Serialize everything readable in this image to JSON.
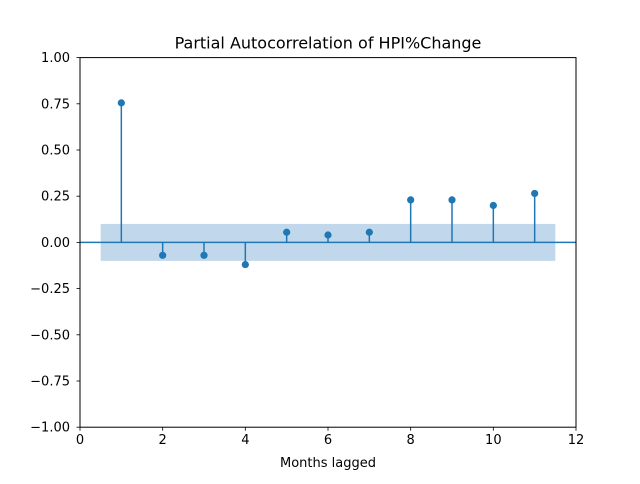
{
  "chart_data": {
    "type": "stem",
    "title": "Partial Autocorrelation of HPI%Change",
    "xlabel": "Months lagged",
    "ylabel": "",
    "xlim": [
      0,
      12
    ],
    "ylim": [
      -1.0,
      1.0
    ],
    "x_ticks": [
      0,
      2,
      4,
      6,
      8,
      10,
      12
    ],
    "x_tick_labels": [
      "0",
      "2",
      "4",
      "6",
      "8",
      "10",
      "12"
    ],
    "y_ticks": [
      -1.0,
      -0.75,
      -0.5,
      -0.25,
      0.0,
      0.25,
      0.5,
      0.75,
      1.0
    ],
    "y_tick_labels": [
      "−1.00",
      "−0.75",
      "−0.50",
      "−0.25",
      "0.00",
      "0.25",
      "0.50",
      "0.75",
      "1.00"
    ],
    "series": [
      {
        "x": [
          1,
          2,
          3,
          4,
          5,
          6,
          7,
          8,
          9,
          10,
          11
        ],
        "values": [
          0.755,
          -0.07,
          -0.07,
          -0.12,
          0.055,
          0.04,
          0.055,
          0.23,
          0.23,
          0.2,
          0.265
        ]
      }
    ],
    "confidence_band": {
      "x_range": [
        0.5,
        11.5
      ],
      "lower": -0.1,
      "upper": 0.1
    },
    "grid": false,
    "colors": {
      "stem": "#1f77b4",
      "band": "#a6c8e4",
      "zero_line": "#1f77b4",
      "axes": "#000000"
    }
  }
}
